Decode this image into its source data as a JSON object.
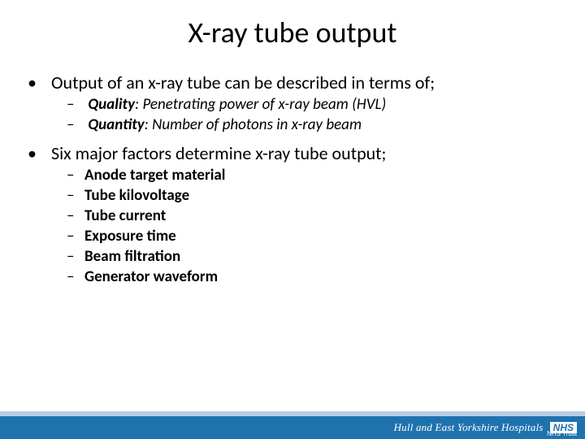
{
  "title": "X-ray tube output",
  "bullets": {
    "b1": "Output of an x-ray tube can be described in terms of;",
    "b1_sub": [
      {
        "label": "Quality",
        "desc": ": Penetrating power of x-ray beam (HVL)"
      },
      {
        "label": "Quantity",
        "desc": ": Number of photons in x-ray beam"
      }
    ],
    "b2": "Six major factors determine x-ray tube output;",
    "b2_sub": [
      "Anode target material",
      "Tube kilovoltage",
      "Tube current",
      "Exposure time",
      "Beam filtration",
      "Generator waveform"
    ]
  },
  "footer": {
    "org": "Hull and East Yorkshire Hospitals",
    "badge": "NHS",
    "sub": "NHS Trust"
  },
  "colors": {
    "band": "#1e73af",
    "band_top": "#9bb5d6",
    "text": "#000000",
    "footer_text": "#ffffff",
    "background": "#ffffff"
  },
  "typography": {
    "title_fontsize": 36,
    "l1_fontsize": 22,
    "l2_fontsize": 19,
    "footer_fontsize": 13
  }
}
